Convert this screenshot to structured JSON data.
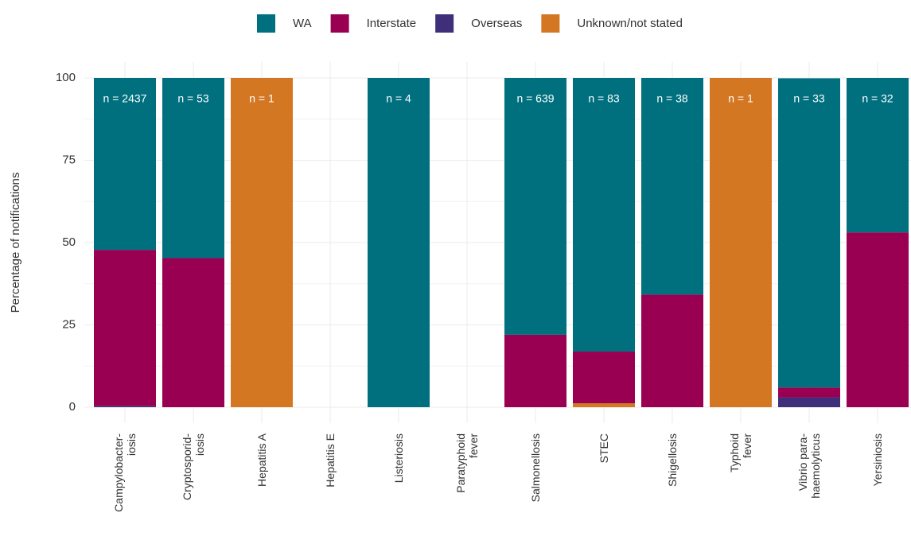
{
  "chart_data": {
    "type": "stacked_bar",
    "y_label": "Percentage of notifications",
    "categories": [
      "Campylobacter-\niosis",
      "Cryptosporid-\niosis",
      "Hepatitis A",
      "Hepatitis E",
      "Listeriosis",
      "Paratyphoid\nfever",
      "Salmonellosis",
      "STEC",
      "Shigellosis",
      "Typhoid\nfever",
      "Vibrio para-\nhaemolyticus",
      "Yersiniosis"
    ],
    "annotations": [
      "n = 2437",
      "n = 53",
      "n = 1",
      null,
      "n = 4",
      null,
      "n = 639",
      "n = 83",
      "n = 38",
      "n = 1",
      "n = 33",
      "n = 32"
    ],
    "series": [
      {
        "name": "WA",
        "color": "#00707f",
        "values": [
          52.2,
          54.7,
          0,
          0,
          100,
          0,
          78,
          83.1,
          65.8,
          0,
          93.9,
          46.9
        ]
      },
      {
        "name": "Interstate",
        "color": "#990052",
        "values": [
          47.4,
          45.3,
          0,
          0,
          0,
          0,
          22,
          15.7,
          34.2,
          0,
          3.0,
          53.1
        ]
      },
      {
        "name": "Overseas",
        "color": "#3f2e7a",
        "values": [
          0.4,
          0,
          0,
          0,
          0,
          0,
          0,
          0,
          0,
          0,
          3.0,
          0
        ]
      },
      {
        "name": "Unknown/not stated",
        "color": "#d47722",
        "values": [
          0,
          0,
          100,
          0,
          0,
          0,
          0,
          1.2,
          0,
          100,
          0,
          0
        ]
      }
    ],
    "ylim": [
      0,
      100
    ],
    "yticks": [
      0,
      25,
      50,
      75,
      100
    ],
    "grid": true,
    "legend": "top"
  }
}
